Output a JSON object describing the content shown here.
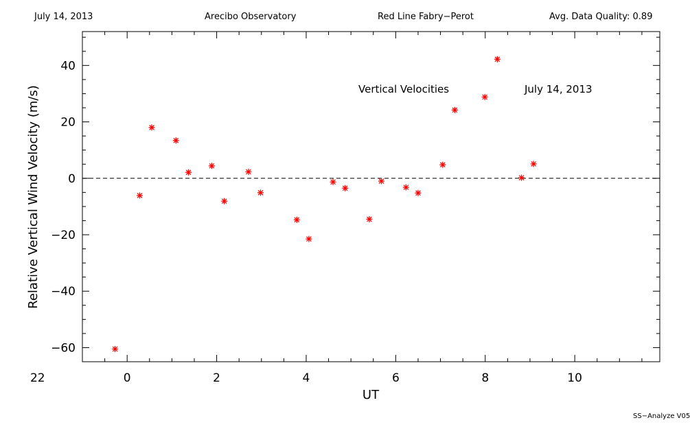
{
  "header": {
    "date": "July 14, 2013",
    "observatory": "Arecibo Observatory",
    "instrument": "Red Line Fabry−Perot",
    "quality": "Avg. Data Quality: 0.89"
  },
  "footer": "SS−Analyze V05",
  "colors": {
    "marker": "#ff0000",
    "axes": "#000000",
    "background": "#ffffff"
  },
  "chart_data": {
    "type": "scatter",
    "xlabel": "UT",
    "ylabel": "Relative Vertical Wind Velocity (m/s)",
    "xlim": [
      23.0,
      11.9
    ],
    "ylim": [
      -65,
      52
    ],
    "x_ticks": [
      22,
      0,
      2,
      4,
      6,
      8,
      10
    ],
    "x_tick_labels": [
      "22",
      "0",
      "2",
      "4",
      "6",
      "8",
      "10"
    ],
    "y_ticks": [
      -60,
      -40,
      -20,
      0,
      20,
      40
    ],
    "y_tick_labels": [
      "−60",
      "−40",
      "−20",
      "0",
      "20",
      "40"
    ],
    "grid": false,
    "reference_line": {
      "y": 0,
      "style": "dashed"
    },
    "annotations": [
      "Vertical Velocities",
      "July 14, 2013"
    ],
    "marker": "asterisk",
    "series": [
      {
        "x": [
          -0.27,
          0.28,
          0.55,
          1.09,
          1.37,
          1.89,
          2.17,
          2.71,
          2.98,
          3.79,
          4.06,
          4.6,
          4.87,
          5.41,
          5.68,
          6.23,
          6.5,
          7.05,
          7.32,
          7.99,
          8.27,
          8.81,
          9.08
        ],
        "y": [
          -60.5,
          -6.1,
          18.0,
          13.4,
          2.1,
          4.4,
          -8.1,
          2.3,
          -5.1,
          -14.7,
          -21.5,
          -1.3,
          -3.5,
          -14.5,
          -1.0,
          -3.2,
          -5.2,
          4.8,
          24.2,
          28.8,
          42.2,
          0.2,
          5.1
        ]
      }
    ]
  }
}
